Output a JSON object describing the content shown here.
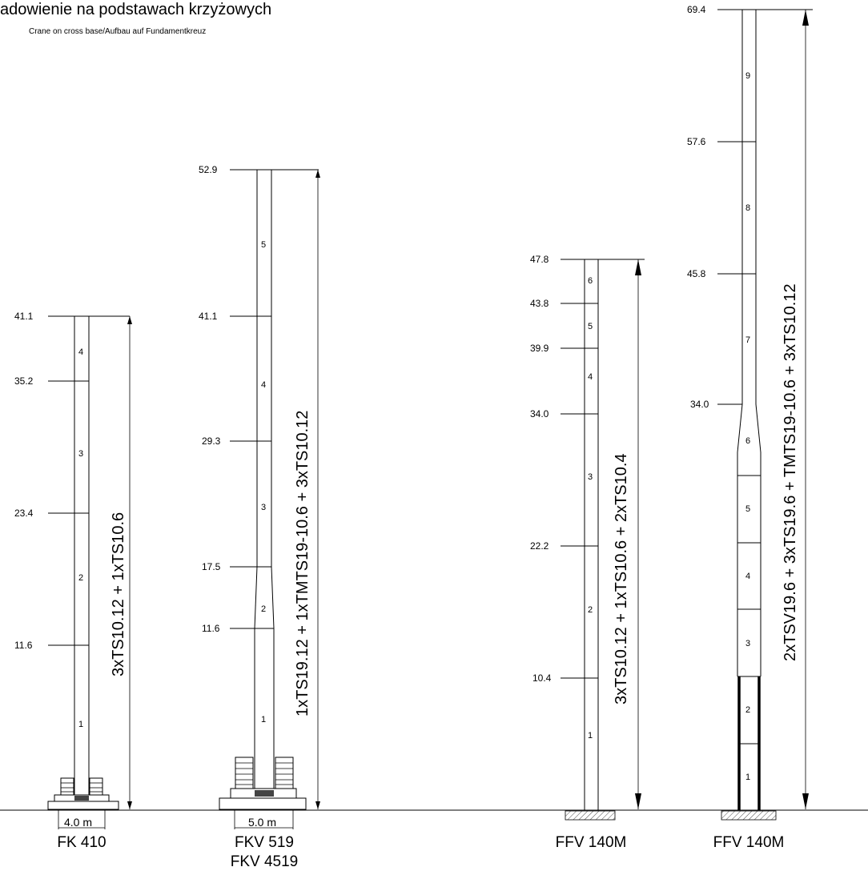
{
  "title": "adowienie na podstawach krzyżowych",
  "subtitle": "Crane on cross base/Aufbau auf Fundamentkreuz",
  "cranes": [
    {
      "name": "FK 410",
      "name2": "",
      "base_width": "4.0 m",
      "height": "41.1",
      "levels": [
        "41.1",
        "35.2",
        "23.4",
        "11.6"
      ],
      "sections": [
        "4",
        "3",
        "2",
        "1"
      ],
      "configuration": "3xTS10.12 + 1xTS10.6"
    },
    {
      "name": "FKV 519",
      "name2": "FKV 4519",
      "base_width": "5.0 m",
      "height": "52.9",
      "levels": [
        "52.9",
        "41.1",
        "29.3",
        "17.5",
        "11.6"
      ],
      "sections": [
        "5",
        "4",
        "3",
        "2",
        "1"
      ],
      "configuration": "1xTS19.12 + 1xTMTS19-10.6 + 3xTS10.12"
    },
    {
      "name": "FFV 140M",
      "name2": "",
      "base_width": "",
      "height": "47.8",
      "levels": [
        "47.8",
        "43.8",
        "39.9",
        "34.0",
        "22.2",
        "10.4"
      ],
      "sections": [
        "6",
        "5",
        "4",
        "3",
        "2",
        "1"
      ],
      "configuration": "3xTS10.12 + 1xTS10.6 + 2xTS10.4"
    },
    {
      "name": "FFV 140M",
      "name2": "",
      "base_width": "",
      "height": "69.4",
      "levels": [
        "69.4",
        "57.6",
        "45.8",
        "34.0"
      ],
      "sections": [
        "9",
        "8",
        "7",
        "6",
        "5",
        "4",
        "3",
        "2",
        "1"
      ],
      "configuration": "2xTSV19.6 + 3xTS19.6 + TMTS19-10.6 + 3xTS10.12"
    }
  ]
}
